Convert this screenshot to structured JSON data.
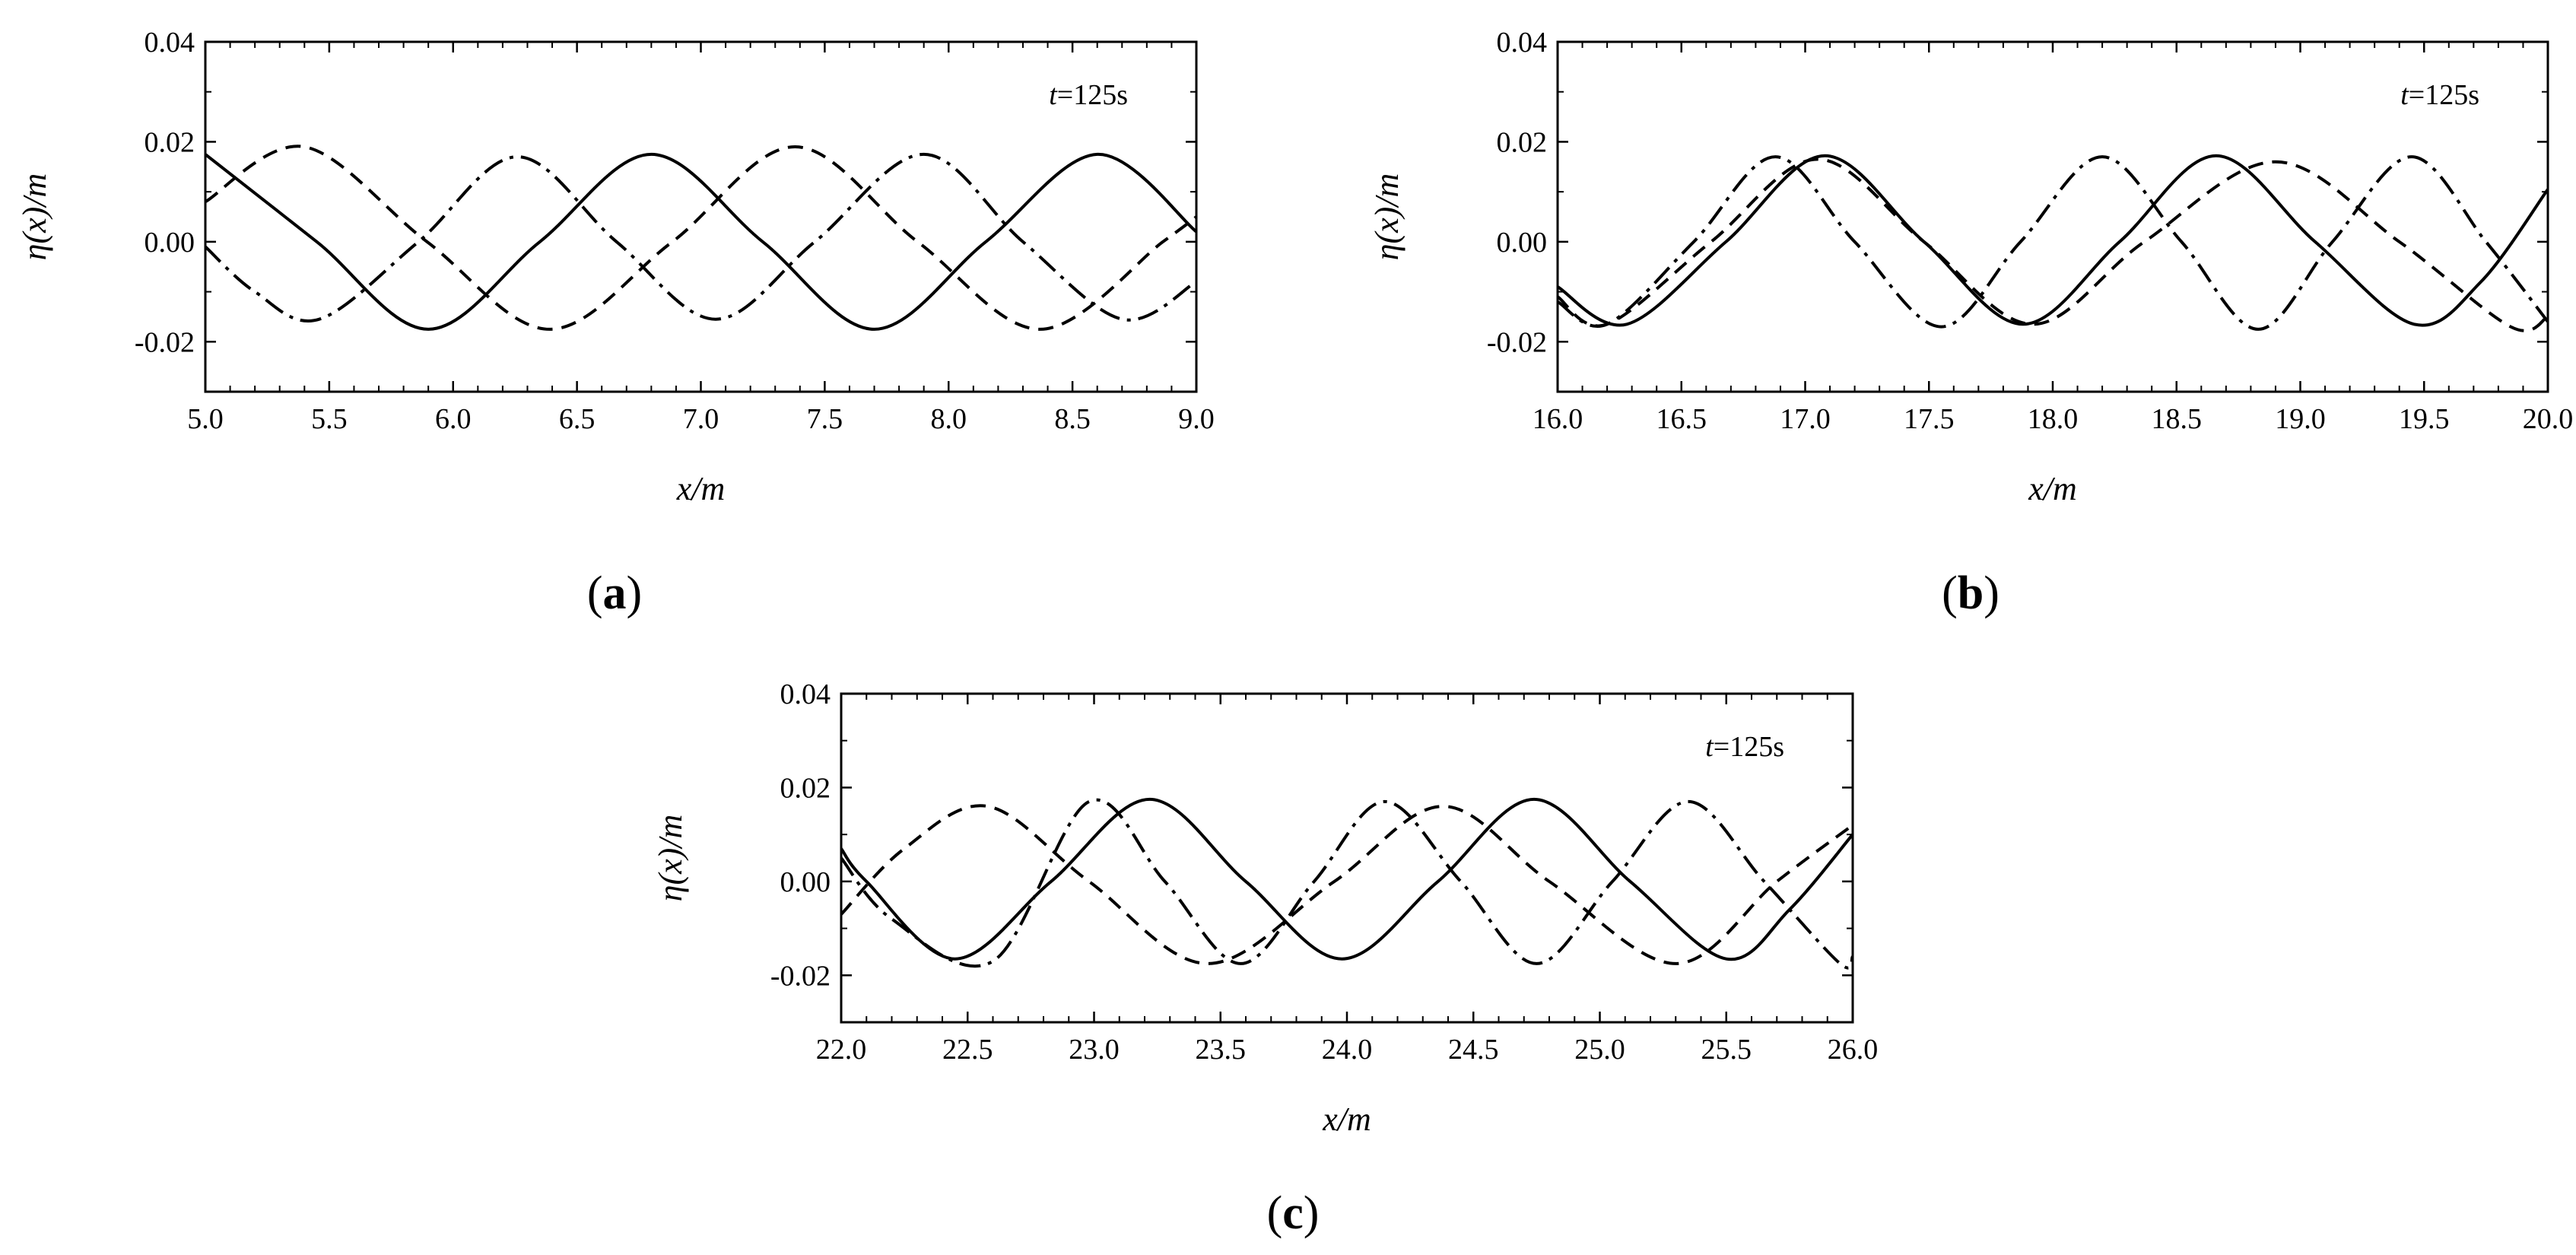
{
  "figure": {
    "legend": "none"
  },
  "chart_data": [
    {
      "type": "line",
      "panel_label": "a",
      "panel_letter": "a",
      "annotation": {
        "var": "t",
        "rest": "=125s"
      },
      "xlabel": "x/m",
      "ylabel": "η(x)/m",
      "xlim": [
        5.0,
        9.0
      ],
      "ylim": [
        -0.03,
        0.04
      ],
      "xticks": [
        "5.0",
        "5.5",
        "6.0",
        "6.5",
        "7.0",
        "7.5",
        "8.0",
        "8.5",
        "9.0"
      ],
      "yticks": [
        "-0.02",
        "0.00",
        "0.02",
        "0.04"
      ],
      "series": [
        {
          "name": "solid",
          "style": "solid",
          "color": "#000000",
          "x": [
            5.0,
            5.45,
            5.9,
            6.35,
            6.8,
            7.25,
            7.7,
            8.15,
            8.6,
            9.0
          ],
          "y": [
            0.0175,
            0.0,
            -0.0175,
            0.0,
            0.0175,
            0.0,
            -0.0175,
            0.0,
            0.0175,
            0.002
          ]
        },
        {
          "name": "dashed",
          "style": "dashed",
          "color": "#000000",
          "x": [
            5.0,
            5.4,
            5.895,
            6.39,
            6.885,
            7.38,
            7.875,
            8.37,
            8.865,
            9.0
          ],
          "y": [
            0.008,
            0.019,
            0.0,
            -0.0175,
            0.0,
            0.019,
            0.0,
            -0.0175,
            0.0,
            0.005
          ]
        },
        {
          "name": "dash-dot",
          "style": "dash-dot",
          "color": "#000000",
          "x": [
            5.0,
            5.2,
            5.46,
            5.86,
            6.26,
            6.66,
            7.06,
            7.46,
            7.9,
            8.3,
            8.7,
            9.0
          ],
          "y": [
            -0.001,
            -0.01,
            -0.0155,
            0.0,
            0.017,
            0.0,
            -0.0155,
            0.0,
            0.0175,
            0.0,
            -0.0155,
            -0.008
          ]
        }
      ]
    },
    {
      "type": "line",
      "panel_label": "b",
      "panel_letter": "b",
      "annotation": {
        "var": "t",
        "rest": "=125s"
      },
      "xlabel": "x/m",
      "ylabel": "η(x)/m",
      "xlim": [
        16.0,
        20.0
      ],
      "ylim": [
        -0.03,
        0.04
      ],
      "xticks": [
        "16.0",
        "16.5",
        "17.0",
        "17.5",
        "18.0",
        "18.5",
        "19.0",
        "19.5",
        "20.0"
      ],
      "yticks": [
        "-0.02",
        "0.00",
        "0.02",
        "0.04"
      ],
      "series": [
        {
          "name": "solid",
          "style": "solid",
          "color": "#000000",
          "x": [
            16.0,
            16.28,
            16.68,
            17.08,
            17.48,
            17.88,
            18.27,
            18.66,
            19.06,
            19.46,
            19.73,
            20.0
          ],
          "y": [
            -0.009,
            -0.0165,
            0.0,
            0.0172,
            0.0,
            -0.0165,
            0.0,
            0.0172,
            0.0,
            -0.0165,
            -0.008,
            0.0105
          ]
        },
        {
          "name": "dashed",
          "style": "dashed",
          "color": "#000000",
          "x": [
            16.0,
            16.2,
            16.62,
            17.05,
            17.48,
            17.92,
            18.37,
            18.9,
            19.4,
            19.85,
            20.0
          ],
          "y": [
            -0.011,
            -0.0165,
            0.0,
            0.0165,
            0.0,
            -0.0165,
            0.0,
            0.016,
            0.0,
            -0.017,
            -0.015
          ]
        },
        {
          "name": "dash-dot",
          "style": "dash-dot",
          "color": "#000000",
          "x": [
            16.0,
            16.2,
            16.55,
            16.88,
            17.2,
            17.55,
            17.87,
            18.2,
            18.52,
            18.83,
            19.13,
            19.45,
            19.75,
            20.0
          ],
          "y": [
            -0.012,
            -0.0165,
            0.0,
            0.017,
            0.0,
            -0.017,
            0.0,
            0.017,
            0.0,
            -0.0175,
            0.0,
            0.017,
            0.0,
            -0.016
          ]
        }
      ]
    },
    {
      "type": "line",
      "panel_label": "c",
      "panel_letter": "c",
      "annotation": {
        "var": "t",
        "rest": "=125s"
      },
      "xlabel": "x/m",
      "ylabel": "η(x)/m",
      "xlim": [
        22.0,
        26.0
      ],
      "ylim": [
        -0.03,
        0.04
      ],
      "xticks": [
        "22.0",
        "22.5",
        "23.0",
        "23.5",
        "24.0",
        "24.5",
        "25.0",
        "25.5",
        "26.0"
      ],
      "yticks": [
        "-0.02",
        "0.00",
        "0.02",
        "0.04"
      ],
      "series": [
        {
          "name": "solid",
          "style": "solid",
          "color": "#000000",
          "x": [
            22.0,
            22.1,
            22.45,
            22.83,
            23.22,
            23.6,
            23.98,
            24.36,
            24.74,
            25.12,
            25.5,
            25.75,
            26.0
          ],
          "y": [
            0.007,
            0.0,
            -0.0165,
            0.0,
            0.0175,
            0.0,
            -0.0165,
            0.0,
            0.0175,
            0.0,
            -0.0165,
            -0.006,
            0.01
          ]
        },
        {
          "name": "dashed",
          "style": "dashed",
          "color": "#000000",
          "x": [
            22.0,
            22.25,
            22.58,
            22.98,
            23.45,
            23.95,
            24.38,
            24.8,
            25.3,
            25.7,
            26.0
          ],
          "y": [
            -0.007,
            0.007,
            0.016,
            0.0,
            -0.0175,
            0.0,
            0.016,
            0.0,
            -0.0175,
            0.0,
            0.012
          ]
        },
        {
          "name": "dash-dot",
          "style": "dash-dot",
          "color": "#000000",
          "x": [
            22.0,
            22.2,
            22.6,
            22.98,
            23.28,
            23.58,
            23.87,
            24.15,
            24.45,
            24.75,
            25.05,
            25.35,
            25.65,
            25.95,
            26.0
          ],
          "y": [
            0.005,
            -0.008,
            -0.017,
            0.017,
            0.0,
            -0.0175,
            0.0,
            0.017,
            0.0,
            -0.0175,
            0.0,
            0.017,
            0.0,
            -0.0175,
            -0.016
          ]
        }
      ]
    }
  ]
}
